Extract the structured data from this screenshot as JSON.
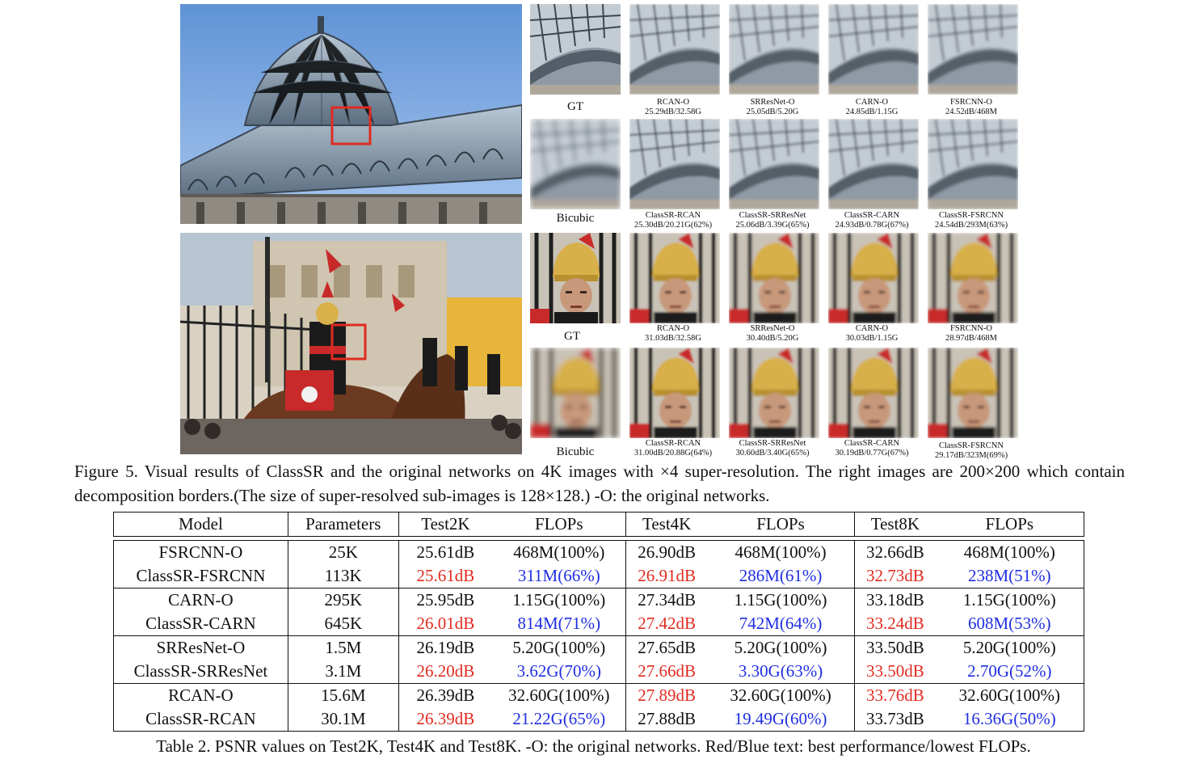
{
  "figure": {
    "caption": "Figure 5. Visual results of ClassSR and the original networks on 4K images with ×4 super-resolution.  The right images are 200×200 which contain decomposition borders.(The size of super-resolved sub-images is 128×128.) -O: the original networks.",
    "set1": {
      "orig_labels": [
        "GT",
        "RCAN-O",
        "SRResNet-O",
        "CARN-O",
        "FSRCNN-O"
      ],
      "orig_values": [
        "",
        "25.29dB/32.58G",
        "25.05dB/5.20G",
        "24.85dB/1.15G",
        "24.52dB/468M"
      ],
      "class_labels": [
        "Bicubic",
        "ClassSR-RCAN",
        "ClassSR-SRResNet",
        "ClassSR-CARN",
        "ClassSR-FSRCNN"
      ],
      "class_values": [
        "",
        "25.30dB/20.21G(62%)",
        "25.06dB/3.39G(65%)",
        "24.93dB/0.78G(67%)",
        "24.54dB/293M(63%)"
      ]
    },
    "set2": {
      "orig_labels": [
        "GT",
        "RCAN-O",
        "SRResNet-O",
        "CARN-O",
        "FSRCNN-O"
      ],
      "orig_values": [
        "",
        "31.03dB/32.58G",
        "30.40dB/5.20G",
        "30.03dB/1.15G",
        "28.97dB/468M"
      ],
      "class_labels": [
        "Bicubic",
        "ClassSR-RCAN",
        "ClassSR-SRResNet",
        "ClassSR-CARN",
        "ClassSR-FSRCNN"
      ],
      "class_values": [
        "",
        "31.00dB/20.88G(64%)",
        "30.60dB/3.40G(65%)",
        "30.19dB/0.77G(67%)",
        "29.17dB/323M(69%)"
      ]
    }
  },
  "table": {
    "headers": [
      "Model",
      "Parameters",
      "Test2K",
      "FLOPs",
      "Test4K",
      "FLOPs",
      "Test8K",
      "FLOPs"
    ],
    "highlight_colors": {
      "red": "#e02b20",
      "blue": "#1f2ee0"
    },
    "groups": [
      [
        {
          "model": "FSRCNN-O",
          "params": "25K",
          "t2k": "25.61dB",
          "f2k": "468M(100%)",
          "t4k": "26.90dB",
          "f4k": "468M(100%)",
          "t8k": "32.66dB",
          "f8k": "468M(100%)"
        },
        {
          "model": "ClassSR-FSRCNN",
          "params": "113K",
          "t2k": "25.61dB",
          "f2k": "311M(66%)",
          "t4k": "26.91dB",
          "f4k": "286M(61%)",
          "t8k": "32.73dB",
          "f8k": "238M(51%)"
        }
      ],
      [
        {
          "model": "CARN-O",
          "params": "295K",
          "t2k": "25.95dB",
          "f2k": "1.15G(100%)",
          "t4k": "27.34dB",
          "f4k": "1.15G(100%)",
          "t8k": "33.18dB",
          "f8k": "1.15G(100%)"
        },
        {
          "model": "ClassSR-CARN",
          "params": "645K",
          "t2k": "26.01dB",
          "f2k": "814M(71%)",
          "t4k": "27.42dB",
          "f4k": "742M(64%)",
          "t8k": "33.24dB",
          "f8k": "608M(53%)"
        }
      ],
      [
        {
          "model": "SRResNet-O",
          "params": "1.5M",
          "t2k": "26.19dB",
          "f2k": "5.20G(100%)",
          "t4k": "27.65dB",
          "f4k": "5.20G(100%)",
          "t8k": "33.50dB",
          "f8k": "5.20G(100%)"
        },
        {
          "model": "ClassSR-SRResNet",
          "params": "3.1M",
          "t2k": "26.20dB",
          "f2k": "3.62G(70%)",
          "t4k": "27.66dB",
          "f4k": "3.30G(63%)",
          "t8k": "33.50dB",
          "f8k": "2.70G(52%)"
        }
      ],
      [
        {
          "model": "RCAN-O",
          "params": "15.6M",
          "t2k": "26.39dB",
          "f2k": "32.60G(100%)",
          "t4k": "27.89dB",
          "f4k": "32.60G(100%)",
          "t8k": "33.76dB",
          "f8k": "32.60G(100%)"
        },
        {
          "model": "ClassSR-RCAN",
          "params": "30.1M",
          "t2k": "26.39dB",
          "f2k": "21.22G(65%)",
          "t4k": "27.88dB",
          "f4k": "19.49G(60%)",
          "t8k": "33.73dB",
          "f8k": "16.36G(50%)"
        }
      ]
    ],
    "caption": "Table 2. PSNR values on Test2K, Test4K and Test8K. -O: the original networks. Red/Blue text: best performance/lowest FLOPs."
  }
}
